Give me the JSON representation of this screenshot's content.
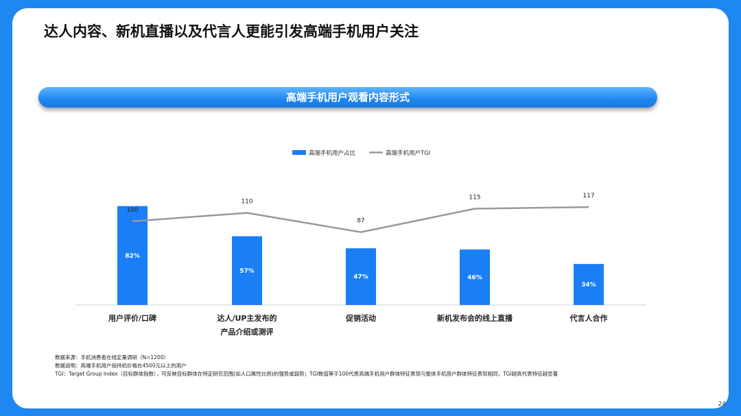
{
  "title": "达人内容、新机直播以及代言人更能引发高端手机用户关注",
  "banner": "高端手机用户观看内容形式",
  "colors": {
    "bar": "#1a7ef5",
    "line": "#999999",
    "background": "#1e88f0"
  },
  "chart_data": {
    "type": "bar",
    "categories": [
      [
        "用户评价/口碑"
      ],
      [
        "达人/UP主发布的",
        "产品介绍或测评"
      ],
      [
        "促销活动"
      ],
      [
        "新机发布会的线上直播"
      ],
      [
        "代言人合作"
      ]
    ],
    "series": [
      {
        "name": "高端手机用户占比",
        "type": "bar",
        "values": [
          82,
          57,
          47,
          46,
          34
        ],
        "labels": [
          "82%",
          "57%",
          "47%",
          "46%",
          "34%"
        ]
      },
      {
        "name": "高端手机用户TGI",
        "type": "line",
        "values": [
          100,
          110,
          87,
          115,
          117
        ],
        "labels": [
          "100",
          "110",
          "87",
          "115",
          "117"
        ]
      }
    ],
    "legend": "top-center",
    "ylim_bar": [
      0,
      100
    ],
    "ylim_line": [
      0,
      140
    ]
  },
  "notes": [
    "数据来源：手机消费者在线定量调研（N=1200）",
    "数据说明：高端手机用户指持机价格在4500元以上的用户",
    "TGI：Target Group Index（目标群体指数），可反映目标群体在特定研究范围(如人口属性比例)的强势或弱势；TGI数值等于100代表高端手机用户群体特征表现与整体手机用户群体特征表现相同，TGI越高代表特征越显著"
  ],
  "page_number": "24"
}
